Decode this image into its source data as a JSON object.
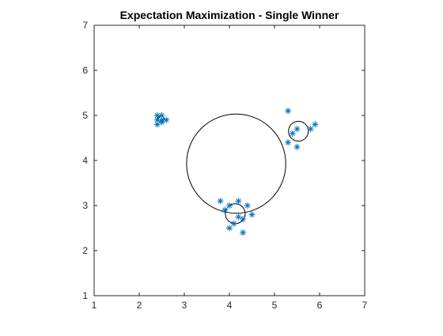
{
  "chart_data": {
    "type": "scatter",
    "title": "Expectation Maximization - Single Winner",
    "xlabel": "",
    "ylabel": "",
    "xlim": [
      1,
      7
    ],
    "ylim": [
      1,
      7
    ],
    "xticks": [
      "1",
      "2",
      "3",
      "4",
      "5",
      "6",
      "7"
    ],
    "yticks": [
      "1",
      "2",
      "3",
      "4",
      "5",
      "6",
      "7"
    ],
    "grid": false,
    "marker": "asterisk",
    "marker_color": "#0072BD",
    "circle_color": "#000000",
    "points": [
      {
        "x": 2.4,
        "y": 5.0
      },
      {
        "x": 2.5,
        "y": 5.0
      },
      {
        "x": 2.4,
        "y": 4.9
      },
      {
        "x": 2.5,
        "y": 4.9
      },
      {
        "x": 2.6,
        "y": 4.9
      },
      {
        "x": 2.4,
        "y": 4.8
      },
      {
        "x": 2.5,
        "y": 4.85
      },
      {
        "x": 5.3,
        "y": 5.1
      },
      {
        "x": 5.5,
        "y": 4.7
      },
      {
        "x": 5.4,
        "y": 4.6
      },
      {
        "x": 5.3,
        "y": 4.4
      },
      {
        "x": 5.5,
        "y": 4.3
      },
      {
        "x": 5.8,
        "y": 4.7
      },
      {
        "x": 5.9,
        "y": 4.8
      },
      {
        "x": 3.8,
        "y": 3.1
      },
      {
        "x": 4.2,
        "y": 3.1
      },
      {
        "x": 4.4,
        "y": 3.0
      },
      {
        "x": 4.0,
        "y": 3.0
      },
      {
        "x": 3.9,
        "y": 2.9
      },
      {
        "x": 4.5,
        "y": 2.8
      },
      {
        "x": 4.3,
        "y": 2.7
      },
      {
        "x": 4.1,
        "y": 2.6
      },
      {
        "x": 4.0,
        "y": 2.5
      },
      {
        "x": 4.3,
        "y": 2.4
      },
      {
        "x": 4.2,
        "y": 2.75
      }
    ],
    "circles": [
      {
        "cx": 4.15,
        "cy": 3.93,
        "r": 1.1
      },
      {
        "cx": 5.53,
        "cy": 4.65,
        "r": 0.22
      },
      {
        "cx": 4.13,
        "cy": 2.82,
        "r": 0.22
      },
      {
        "cx": 2.48,
        "cy": 4.92,
        "r": 0.07
      }
    ]
  }
}
